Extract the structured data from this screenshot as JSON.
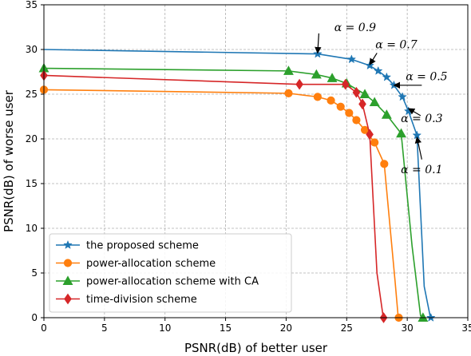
{
  "chart_data": {
    "type": "line",
    "xlabel": "PSNR(dB) of better user",
    "ylabel": "PSNR(dB) of worse user",
    "xlim": [
      0,
      35
    ],
    "ylim": [
      0,
      35
    ],
    "xticks": [
      0,
      5,
      10,
      15,
      20,
      25,
      30,
      35
    ],
    "yticks": [
      0,
      5,
      10,
      15,
      20,
      25,
      30,
      35
    ],
    "grid": true,
    "legend": "bottom-left",
    "series": [
      {
        "name": "the proposed scheme",
        "color": "#1f77b4",
        "marker": "star",
        "x": [
          0,
          22.6,
          25.4,
          26.9,
          27.6,
          28.3,
          28.9,
          29.6,
          30.1,
          30.8,
          31.4,
          31.9,
          31.95
        ],
        "y": [
          30.0,
          29.5,
          28.9,
          28.2,
          27.6,
          26.9,
          26.0,
          24.7,
          23.1,
          20.4,
          3.5,
          0.1,
          0.0
        ],
        "marker_x": [
          22.6,
          25.4,
          26.9,
          27.6,
          28.3,
          28.9,
          29.6,
          30.1,
          30.8,
          31.95
        ],
        "marker_y": [
          29.5,
          28.9,
          28.2,
          27.6,
          26.9,
          26.0,
          24.7,
          23.1,
          20.4,
          0.0
        ]
      },
      {
        "name": "power-allocation scheme",
        "color": "#ff7f0e",
        "marker": "circle",
        "x": [
          0,
          20.2,
          22.6,
          23.7,
          24.5,
          25.2,
          25.8,
          26.5,
          27.3,
          28.1,
          29.0,
          29.25,
          29.3
        ],
        "y": [
          25.5,
          25.1,
          24.7,
          24.3,
          23.6,
          22.9,
          22.1,
          21.0,
          19.6,
          17.2,
          4.0,
          0.1,
          0.0
        ],
        "marker_x": [
          0,
          20.2,
          22.6,
          23.7,
          24.5,
          25.2,
          25.8,
          26.5,
          27.3,
          28.1,
          29.3
        ],
        "marker_y": [
          25.5,
          25.1,
          24.7,
          24.3,
          23.6,
          22.9,
          22.1,
          21.0,
          19.6,
          17.2,
          0.0
        ]
      },
      {
        "name": "power-allocation scheme with CA",
        "color": "#2ca02c",
        "marker": "triangle",
        "x": [
          0,
          20.2,
          22.5,
          23.8,
          25.0,
          26.5,
          27.3,
          28.3,
          29.5,
          30.4,
          31.1,
          31.3
        ],
        "y": [
          27.9,
          27.6,
          27.2,
          26.8,
          26.2,
          25.0,
          24.1,
          22.7,
          20.6,
          8.0,
          0.2,
          0.0
        ],
        "marker_x": [
          0,
          20.2,
          22.5,
          23.8,
          25.0,
          26.5,
          27.3,
          28.3,
          29.5,
          31.3
        ],
        "marker_y": [
          27.9,
          27.6,
          27.2,
          26.8,
          26.2,
          25.0,
          24.1,
          22.7,
          20.6,
          0.0
        ]
      },
      {
        "name": "time-division scheme",
        "color": "#d62728",
        "marker": "diamond",
        "x": [
          0,
          21.1,
          24.9,
          25.8,
          26.3,
          26.9,
          27.5,
          28.0,
          28.05
        ],
        "y": [
          27.1,
          26.1,
          26.1,
          25.2,
          23.9,
          20.5,
          5.0,
          0.2,
          0.0
        ],
        "marker_x": [
          0,
          21.1,
          24.9,
          25.8,
          26.3,
          26.9,
          28.05
        ],
        "marker_y": [
          27.1,
          26.1,
          26.1,
          25.2,
          23.9,
          20.5,
          0.0
        ]
      }
    ],
    "annotations": [
      {
        "text": "α = 0.9",
        "text_x": 25.7,
        "text_y": 32.5,
        "point_x": 22.6,
        "point_y": 29.6,
        "arrow_from_x": 22.7,
        "arrow_from_y": 31.8
      },
      {
        "text": "α = 0.7",
        "text_x": 29.1,
        "text_y": 30.6,
        "point_x": 26.9,
        "point_y": 28.3,
        "arrow_from_x": 27.5,
        "arrow_from_y": 29.6
      },
      {
        "text": "α = 0.5",
        "text_x": 31.6,
        "text_y": 27.0,
        "point_x": 28.9,
        "point_y": 26.0,
        "arrow_from_x": 31.2,
        "arrow_from_y": 26.0
      },
      {
        "text": "α = 0.3",
        "text_x": 31.2,
        "text_y": 22.3,
        "point_x": 30.1,
        "point_y": 23.4,
        "arrow_from_x": 31.1,
        "arrow_from_y": 22.6
      },
      {
        "text": "α = 0.1",
        "text_x": 31.2,
        "text_y": 16.6,
        "point_x": 30.8,
        "point_y": 20.2,
        "arrow_from_x": 31.2,
        "arrow_from_y": 17.7
      }
    ]
  }
}
